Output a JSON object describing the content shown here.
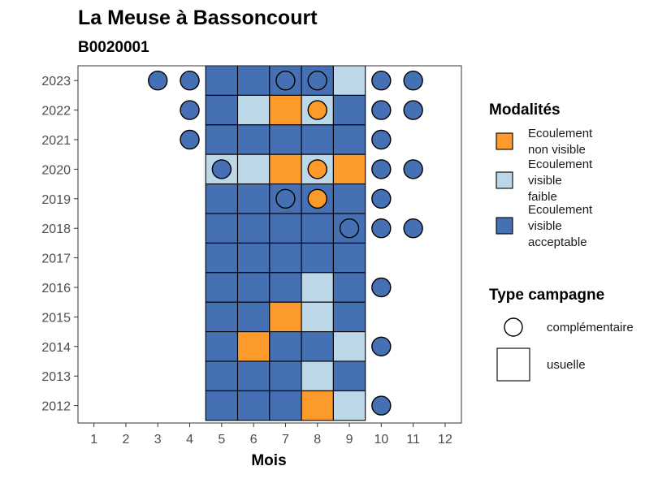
{
  "chart_data": {
    "type": "heatmap",
    "title": "La Meuse à Bassoncourt",
    "subtitle": "B0020001",
    "xlabel": "Mois",
    "ylabel": "",
    "x_ticks": [
      1,
      2,
      3,
      4,
      5,
      6,
      7,
      8,
      9,
      10,
      11,
      12
    ],
    "y_ticks": [
      2012,
      2013,
      2014,
      2015,
      2016,
      2017,
      2018,
      2019,
      2020,
      2021,
      2022,
      2023
    ],
    "grid": false,
    "legend_position": "right",
    "modalites": [
      {
        "key": "non_visible",
        "label": [
          "Ecoulement",
          "non visible"
        ],
        "color": "#fd9a2c"
      },
      {
        "key": "faible",
        "label": [
          "Ecoulement",
          "visible",
          "faible"
        ],
        "color": "#bcd7e7"
      },
      {
        "key": "acceptable",
        "label": [
          "Ecoulement",
          "visible",
          "acceptable"
        ],
        "color": "#4571b4"
      }
    ],
    "campaign_types": [
      {
        "key": "complementaire",
        "label": "complémentaire",
        "shape": "circle"
      },
      {
        "key": "usuelle",
        "label": "usuelle",
        "shape": "square"
      }
    ],
    "legend_titles": {
      "modalites": "Modalités",
      "campaign": "Type campagne"
    },
    "observations": [
      {
        "year": 2023,
        "month": 3,
        "type": "complementaire",
        "modalite": "acceptable"
      },
      {
        "year": 2023,
        "month": 4,
        "type": "complementaire",
        "modalite": "acceptable"
      },
      {
        "year": 2023,
        "month": 5,
        "type": "usuelle",
        "modalite": "acceptable"
      },
      {
        "year": 2023,
        "month": 6,
        "type": "usuelle",
        "modalite": "acceptable"
      },
      {
        "year": 2023,
        "month": 7,
        "type": "usuelle",
        "modalite": "acceptable"
      },
      {
        "year": 2023,
        "month": 7,
        "type": "complementaire",
        "modalite": "acceptable"
      },
      {
        "year": 2023,
        "month": 8,
        "type": "usuelle",
        "modalite": "acceptable"
      },
      {
        "year": 2023,
        "month": 8,
        "type": "complementaire",
        "modalite": "acceptable"
      },
      {
        "year": 2023,
        "month": 9,
        "type": "usuelle",
        "modalite": "faible"
      },
      {
        "year": 2023,
        "month": 10,
        "type": "complementaire",
        "modalite": "acceptable"
      },
      {
        "year": 2023,
        "month": 11,
        "type": "complementaire",
        "modalite": "acceptable"
      },
      {
        "year": 2022,
        "month": 4,
        "type": "complementaire",
        "modalite": "acceptable"
      },
      {
        "year": 2022,
        "month": 5,
        "type": "usuelle",
        "modalite": "acceptable"
      },
      {
        "year": 2022,
        "month": 6,
        "type": "usuelle",
        "modalite": "faible"
      },
      {
        "year": 2022,
        "month": 7,
        "type": "usuelle",
        "modalite": "non_visible"
      },
      {
        "year": 2022,
        "month": 8,
        "type": "usuelle",
        "modalite": "faible"
      },
      {
        "year": 2022,
        "month": 8,
        "type": "complementaire",
        "modalite": "non_visible"
      },
      {
        "year": 2022,
        "month": 9,
        "type": "usuelle",
        "modalite": "acceptable"
      },
      {
        "year": 2022,
        "month": 10,
        "type": "complementaire",
        "modalite": "acceptable"
      },
      {
        "year": 2022,
        "month": 11,
        "type": "complementaire",
        "modalite": "acceptable"
      },
      {
        "year": 2021,
        "month": 4,
        "type": "complementaire",
        "modalite": "acceptable"
      },
      {
        "year": 2021,
        "month": 5,
        "type": "usuelle",
        "modalite": "acceptable"
      },
      {
        "year": 2021,
        "month": 6,
        "type": "usuelle",
        "modalite": "acceptable"
      },
      {
        "year": 2021,
        "month": 7,
        "type": "usuelle",
        "modalite": "acceptable"
      },
      {
        "year": 2021,
        "month": 8,
        "type": "usuelle",
        "modalite": "acceptable"
      },
      {
        "year": 2021,
        "month": 9,
        "type": "usuelle",
        "modalite": "acceptable"
      },
      {
        "year": 2021,
        "month": 10,
        "type": "complementaire",
        "modalite": "acceptable"
      },
      {
        "year": 2020,
        "month": 5,
        "type": "usuelle",
        "modalite": "faible"
      },
      {
        "year": 2020,
        "month": 5,
        "type": "complementaire",
        "modalite": "acceptable"
      },
      {
        "year": 2020,
        "month": 6,
        "type": "usuelle",
        "modalite": "faible"
      },
      {
        "year": 2020,
        "month": 7,
        "type": "usuelle",
        "modalite": "non_visible"
      },
      {
        "year": 2020,
        "month": 8,
        "type": "usuelle",
        "modalite": "faible"
      },
      {
        "year": 2020,
        "month": 8,
        "type": "complementaire",
        "modalite": "non_visible"
      },
      {
        "year": 2020,
        "month": 9,
        "type": "usuelle",
        "modalite": "non_visible"
      },
      {
        "year": 2020,
        "month": 10,
        "type": "complementaire",
        "modalite": "acceptable"
      },
      {
        "year": 2020,
        "month": 11,
        "type": "complementaire",
        "modalite": "acceptable"
      },
      {
        "year": 2019,
        "month": 5,
        "type": "usuelle",
        "modalite": "acceptable"
      },
      {
        "year": 2019,
        "month": 6,
        "type": "usuelle",
        "modalite": "acceptable"
      },
      {
        "year": 2019,
        "month": 7,
        "type": "usuelle",
        "modalite": "acceptable"
      },
      {
        "year": 2019,
        "month": 7,
        "type": "complementaire",
        "modalite": "acceptable"
      },
      {
        "year": 2019,
        "month": 8,
        "type": "usuelle",
        "modalite": "acceptable"
      },
      {
        "year": 2019,
        "month": 8,
        "type": "complementaire",
        "modalite": "non_visible"
      },
      {
        "year": 2019,
        "month": 9,
        "type": "usuelle",
        "modalite": "acceptable"
      },
      {
        "year": 2019,
        "month": 10,
        "type": "complementaire",
        "modalite": "acceptable"
      },
      {
        "year": 2018,
        "month": 5,
        "type": "usuelle",
        "modalite": "acceptable"
      },
      {
        "year": 2018,
        "month": 6,
        "type": "usuelle",
        "modalite": "acceptable"
      },
      {
        "year": 2018,
        "month": 7,
        "type": "usuelle",
        "modalite": "acceptable"
      },
      {
        "year": 2018,
        "month": 8,
        "type": "usuelle",
        "modalite": "acceptable"
      },
      {
        "year": 2018,
        "month": 9,
        "type": "usuelle",
        "modalite": "acceptable"
      },
      {
        "year": 2018,
        "month": 9,
        "type": "complementaire",
        "modalite": "acceptable"
      },
      {
        "year": 2018,
        "month": 10,
        "type": "complementaire",
        "modalite": "acceptable"
      },
      {
        "year": 2018,
        "month": 11,
        "type": "complementaire",
        "modalite": "acceptable"
      },
      {
        "year": 2017,
        "month": 5,
        "type": "usuelle",
        "modalite": "acceptable"
      },
      {
        "year": 2017,
        "month": 6,
        "type": "usuelle",
        "modalite": "acceptable"
      },
      {
        "year": 2017,
        "month": 7,
        "type": "usuelle",
        "modalite": "acceptable"
      },
      {
        "year": 2017,
        "month": 8,
        "type": "usuelle",
        "modalite": "acceptable"
      },
      {
        "year": 2017,
        "month": 9,
        "type": "usuelle",
        "modalite": "acceptable"
      },
      {
        "year": 2016,
        "month": 5,
        "type": "usuelle",
        "modalite": "acceptable"
      },
      {
        "year": 2016,
        "month": 6,
        "type": "usuelle",
        "modalite": "acceptable"
      },
      {
        "year": 2016,
        "month": 7,
        "type": "usuelle",
        "modalite": "acceptable"
      },
      {
        "year": 2016,
        "month": 8,
        "type": "usuelle",
        "modalite": "faible"
      },
      {
        "year": 2016,
        "month": 9,
        "type": "usuelle",
        "modalite": "acceptable"
      },
      {
        "year": 2016,
        "month": 10,
        "type": "complementaire",
        "modalite": "acceptable"
      },
      {
        "year": 2015,
        "month": 5,
        "type": "usuelle",
        "modalite": "acceptable"
      },
      {
        "year": 2015,
        "month": 6,
        "type": "usuelle",
        "modalite": "acceptable"
      },
      {
        "year": 2015,
        "month": 7,
        "type": "usuelle",
        "modalite": "non_visible"
      },
      {
        "year": 2015,
        "month": 8,
        "type": "usuelle",
        "modalite": "faible"
      },
      {
        "year": 2015,
        "month": 9,
        "type": "usuelle",
        "modalite": "acceptable"
      },
      {
        "year": 2014,
        "month": 5,
        "type": "usuelle",
        "modalite": "acceptable"
      },
      {
        "year": 2014,
        "month": 6,
        "type": "usuelle",
        "modalite": "non_visible"
      },
      {
        "year": 2014,
        "month": 7,
        "type": "usuelle",
        "modalite": "acceptable"
      },
      {
        "year": 2014,
        "month": 8,
        "type": "usuelle",
        "modalite": "acceptable"
      },
      {
        "year": 2014,
        "month": 9,
        "type": "usuelle",
        "modalite": "faible"
      },
      {
        "year": 2014,
        "month": 10,
        "type": "complementaire",
        "modalite": "acceptable"
      },
      {
        "year": 2013,
        "month": 5,
        "type": "usuelle",
        "modalite": "acceptable"
      },
      {
        "year": 2013,
        "month": 6,
        "type": "usuelle",
        "modalite": "acceptable"
      },
      {
        "year": 2013,
        "month": 7,
        "type": "usuelle",
        "modalite": "acceptable"
      },
      {
        "year": 2013,
        "month": 8,
        "type": "usuelle",
        "modalite": "faible"
      },
      {
        "year": 2013,
        "month": 9,
        "type": "usuelle",
        "modalite": "acceptable"
      },
      {
        "year": 2012,
        "month": 5,
        "type": "usuelle",
        "modalite": "acceptable"
      },
      {
        "year": 2012,
        "month": 6,
        "type": "usuelle",
        "modalite": "acceptable"
      },
      {
        "year": 2012,
        "month": 7,
        "type": "usuelle",
        "modalite": "acceptable"
      },
      {
        "year": 2012,
        "month": 8,
        "type": "usuelle",
        "modalite": "non_visible"
      },
      {
        "year": 2012,
        "month": 9,
        "type": "usuelle",
        "modalite": "faible"
      },
      {
        "year": 2012,
        "month": 10,
        "type": "complementaire",
        "modalite": "acceptable"
      }
    ]
  }
}
